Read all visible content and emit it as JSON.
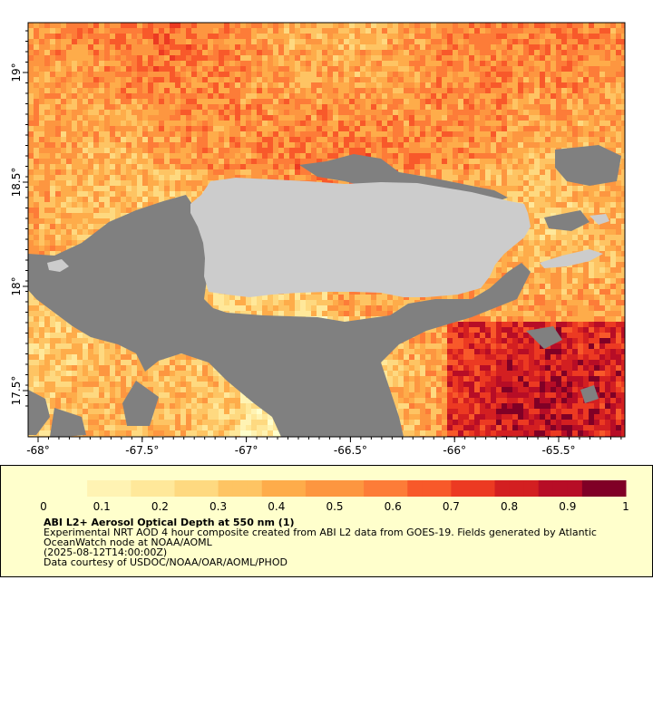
{
  "map": {
    "lon_ticks": [
      "-68°",
      "-67.5°",
      "-67°",
      "-66.5°",
      "-66°",
      "-65.5°"
    ],
    "lat_ticks": [
      "17.5°",
      "18°",
      "18.5°",
      "19°"
    ],
    "colors": {
      "land": "#cccccc",
      "no_data": "#808080",
      "frame": "#000000"
    }
  },
  "colorbar": {
    "labels": [
      "0",
      "0.1",
      "0.2",
      "0.3",
      "0.4",
      "0.5",
      "0.6",
      "0.7",
      "0.8",
      "0.9",
      "1"
    ],
    "colors": [
      "#ffffcc",
      "#fff3b3",
      "#ffe89a",
      "#fed980",
      "#fec463",
      "#feac4a",
      "#fd9640",
      "#fd7c38",
      "#f8592a",
      "#ec3a22",
      "#d31f21",
      "#b70d26",
      "#800026"
    ]
  },
  "legend": {
    "title": "ABI L2+ Aerosol Optical Depth at 550 nm (1)",
    "description": "Experimental NRT AOD 4 hour composite created from ABI L2 data from GOES-19. Fields generated by Atlantic OceanWatch node at NOAA/AOML",
    "time_range": "(2025-08-12T14:00:00Z)",
    "credit": "Data courtesy of USDOC/NOAA/OAR/AOML/PHOD"
  }
}
